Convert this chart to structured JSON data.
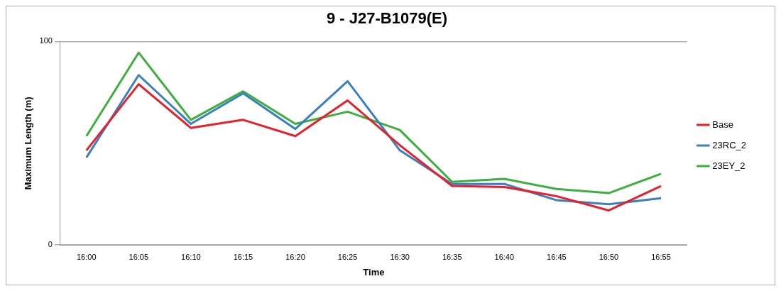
{
  "chart_data": {
    "type": "line",
    "title": "9 - J27-B1079(E)",
    "xlabel": "Time",
    "ylabel": "Maximum Length (m)",
    "categories": [
      "16:00",
      "16:05",
      "16:10",
      "16:15",
      "16:20",
      "16:25",
      "16:30",
      "16:35",
      "16:40",
      "16:45",
      "16:50",
      "16:55"
    ],
    "series": [
      {
        "name": "Base",
        "color": "#e8202a",
        "values": [
          46.5,
          79,
          57.5,
          61.5,
          53.5,
          71,
          49,
          29,
          28.5,
          24,
          17,
          29
        ]
      },
      {
        "name": "23RC_2",
        "color": "#3a7fc1",
        "values": [
          43,
          83.5,
          59.5,
          74.5,
          57,
          80.5,
          46.5,
          30,
          30,
          22,
          20,
          23
        ]
      },
      {
        "name": "23EY_2",
        "color": "#3cb03c",
        "values": [
          53.5,
          94.5,
          61.5,
          75.5,
          59.5,
          65.5,
          56.5,
          31,
          32.5,
          27.5,
          25.5,
          35
        ]
      }
    ],
    "ylim": [
      0,
      100
    ],
    "yticks": [
      0,
      100
    ],
    "grid": "y",
    "legend": "right",
    "marker": "none",
    "line_style": "solid"
  }
}
